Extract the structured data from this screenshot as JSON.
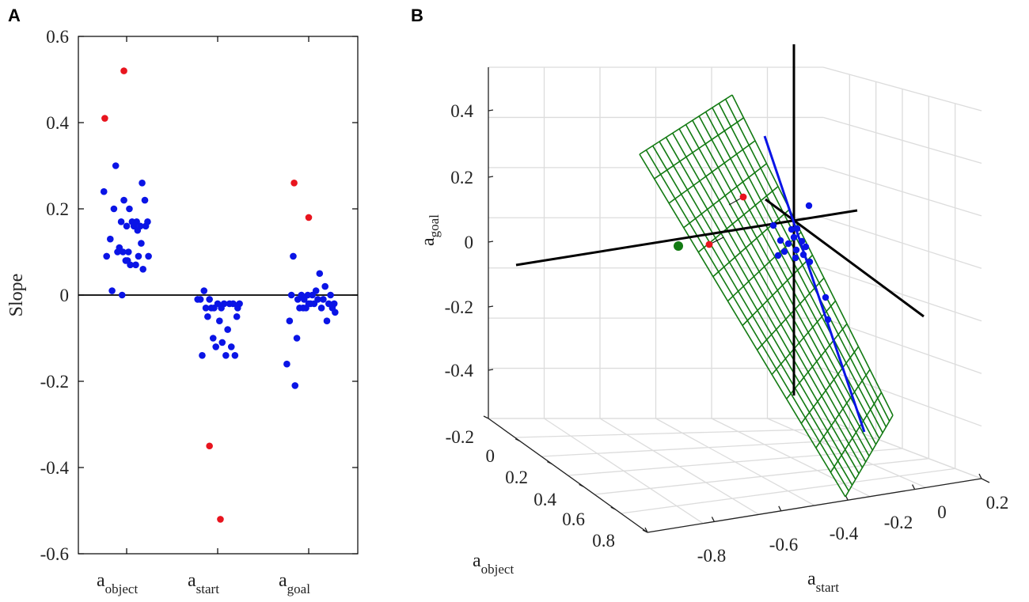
{
  "colors": {
    "blue": "#0a14e6",
    "red": "#e8141e",
    "green": "#127a12",
    "black": "#000000",
    "grid": "#dcdcdc"
  },
  "chart_data": [
    {
      "panel": "A",
      "type": "scatter",
      "ylabel": "Slope",
      "ylim": [
        -0.6,
        0.6
      ],
      "yticks": [
        "0.6",
        "0.4",
        "0.2",
        "0",
        "-0.2",
        "-0.4",
        "-0.6"
      ],
      "ytick_values": [
        0.6,
        0.4,
        0.2,
        0,
        -0.2,
        -0.4,
        -0.6
      ],
      "categories": [
        {
          "base": "a",
          "sub": "object"
        },
        {
          "base": "a",
          "sub": "start"
        },
        {
          "base": "a",
          "sub": "goal"
        }
      ],
      "series": [
        {
          "name": "a_object",
          "blue": [
            [
              0.75,
              0.24
            ],
            [
              0.78,
              0.09
            ],
            [
              0.82,
              0.13
            ],
            [
              0.84,
              0.01
            ],
            [
              0.86,
              0.2
            ],
            [
              0.88,
              0.3
            ],
            [
              0.9,
              0.1
            ],
            [
              0.92,
              0.11
            ],
            [
              0.94,
              0.17
            ],
            [
              0.96,
              0.1
            ],
            [
              0.97,
              0.22
            ],
            [
              0.99,
              0.08
            ],
            [
              1.0,
              0.16
            ],
            [
              1.01,
              0.08
            ],
            [
              1.02,
              0.1
            ],
            [
              1.03,
              0.2
            ],
            [
              1.04,
              0.07
            ],
            [
              1.06,
              0.17
            ],
            [
              1.08,
              0.16
            ],
            [
              1.1,
              0.07
            ],
            [
              1.11,
              0.17
            ],
            [
              1.12,
              0.15
            ],
            [
              1.13,
              0.09
            ],
            [
              1.15,
              0.16
            ],
            [
              1.16,
              0.12
            ],
            [
              1.17,
              0.26
            ],
            [
              1.18,
              0.06
            ],
            [
              1.2,
              0.22
            ],
            [
              1.21,
              0.16
            ],
            [
              1.23,
              0.17
            ],
            [
              1.24,
              0.09
            ],
            [
              0.95,
              0.0
            ]
          ],
          "red": [
            [
              0.76,
              0.41
            ],
            [
              0.97,
              0.52
            ]
          ]
        },
        {
          "name": "a_start",
          "blue": [
            [
              1.78,
              -0.01
            ],
            [
              1.81,
              -0.01
            ],
            [
              1.83,
              -0.14
            ],
            [
              1.85,
              0.01
            ],
            [
              1.87,
              -0.03
            ],
            [
              1.89,
              -0.05
            ],
            [
              1.91,
              -0.01
            ],
            [
              1.93,
              -0.03
            ],
            [
              1.95,
              -0.1
            ],
            [
              1.96,
              -0.03
            ],
            [
              1.98,
              -0.12
            ],
            [
              2.0,
              -0.02
            ],
            [
              2.02,
              -0.06
            ],
            [
              2.04,
              -0.03
            ],
            [
              2.05,
              -0.11
            ],
            [
              2.07,
              -0.02
            ],
            [
              2.09,
              -0.14
            ],
            [
              2.11,
              -0.08
            ],
            [
              2.13,
              -0.02
            ],
            [
              2.15,
              -0.12
            ],
            [
              2.17,
              -0.02
            ],
            [
              2.19,
              -0.14
            ],
            [
              2.21,
              -0.05
            ],
            [
              2.22,
              -0.03
            ],
            [
              2.24,
              -0.02
            ]
          ],
          "red": [
            [
              1.91,
              -0.35
            ],
            [
              2.03,
              -0.52
            ]
          ]
        },
        {
          "name": "a_goal",
          "blue": [
            [
              2.76,
              -0.16
            ],
            [
              2.79,
              -0.06
            ],
            [
              2.81,
              0.0
            ],
            [
              2.83,
              0.09
            ],
            [
              2.85,
              -0.21
            ],
            [
              2.87,
              -0.1
            ],
            [
              2.88,
              -0.01
            ],
            [
              2.9,
              -0.03
            ],
            [
              2.92,
              0.0
            ],
            [
              2.94,
              -0.03
            ],
            [
              2.95,
              -0.01
            ],
            [
              2.97,
              -0.03
            ],
            [
              2.99,
              0.0
            ],
            [
              3.0,
              -0.02
            ],
            [
              3.02,
              -0.02
            ],
            [
              3.04,
              0.0
            ],
            [
              3.06,
              -0.02
            ],
            [
              3.08,
              0.01
            ],
            [
              3.1,
              -0.01
            ],
            [
              3.12,
              0.05
            ],
            [
              3.14,
              -0.03
            ],
            [
              3.16,
              -0.01
            ],
            [
              3.18,
              0.02
            ],
            [
              3.2,
              -0.06
            ],
            [
              3.22,
              -0.02
            ],
            [
              3.24,
              0.0
            ],
            [
              3.26,
              -0.03
            ],
            [
              3.28,
              -0.02
            ],
            [
              3.29,
              -0.04
            ]
          ],
          "red": [
            [
              2.84,
              0.26
            ],
            [
              3.0,
              0.18
            ]
          ]
        }
      ]
    },
    {
      "panel": "B",
      "type": "scatter",
      "title": "",
      "zlabel": {
        "base": "a",
        "sub": "goal"
      },
      "xlabel": {
        "base": "a",
        "sub": "object"
      },
      "ylabel": {
        "base": "a",
        "sub": "start"
      },
      "zticks": [
        "0.4",
        "0.2",
        "0",
        "-0.2",
        "-0.4"
      ],
      "xticks": [
        "-0.2",
        "0",
        "0.2",
        "0.4",
        "0.6",
        "0.8"
      ],
      "yticks": [
        "-0.8",
        "-0.6",
        "-0.4",
        "-0.2",
        "0",
        "0.2"
      ],
      "series": [
        {
          "name": "data points",
          "color": "blue",
          "count": 17
        },
        {
          "name": "outliers",
          "color": "red",
          "count": 2
        },
        {
          "name": "reference point",
          "color": "green",
          "count": 1
        },
        {
          "name": "fitted line",
          "color": "blue",
          "kind": "line"
        },
        {
          "name": "fitted plane",
          "color": "green",
          "kind": "mesh"
        },
        {
          "name": "axes through origin",
          "color": "black",
          "kind": "line"
        }
      ]
    }
  ]
}
